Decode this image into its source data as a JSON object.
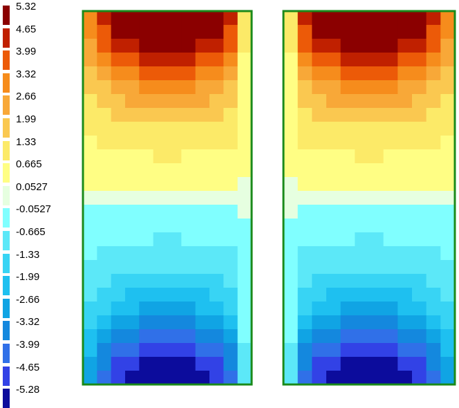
{
  "chart_data": {
    "type": "heatmap",
    "colorbar": {
      "tick_labels": [
        "5.32",
        "4.65",
        "3.99",
        "3.32",
        "2.66",
        "1.99",
        "1.33",
        "0.665",
        "0.0527",
        "-0.0527",
        "-0.665",
        "-1.33",
        "-1.99",
        "-2.66",
        "-3.32",
        "-3.99",
        "-4.65",
        "-5.28"
      ],
      "colors": [
        "#8b0000",
        "#c02000",
        "#ec5a08",
        "#f68c1c",
        "#f8a838",
        "#fac850",
        "#fcea68",
        "#fffe84",
        "#e6ffe0",
        "#80ffff",
        "#5ce8f8",
        "#38d4f4",
        "#1ec0f0",
        "#10a4e4",
        "#1488de",
        "#3070e8",
        "#3242e6",
        "#0c0c9c"
      ]
    },
    "panels": [
      {
        "name": "left",
        "grid": {
          "cols": 12,
          "rows": 27
        },
        "value_range": [
          -5.28,
          5.32
        ],
        "pattern": "positive lobe at top, negative lobe at bottom, values near 0 across middle band; thin strip along right edge",
        "border_color": "#1a8a1a"
      },
      {
        "name": "right",
        "grid": {
          "cols": 12,
          "rows": 27
        },
        "value_range": [
          -5.28,
          5.32
        ],
        "pattern": "mirror of left panel; thin strip along left edge",
        "border_color": "#1a8a1a"
      }
    ]
  }
}
